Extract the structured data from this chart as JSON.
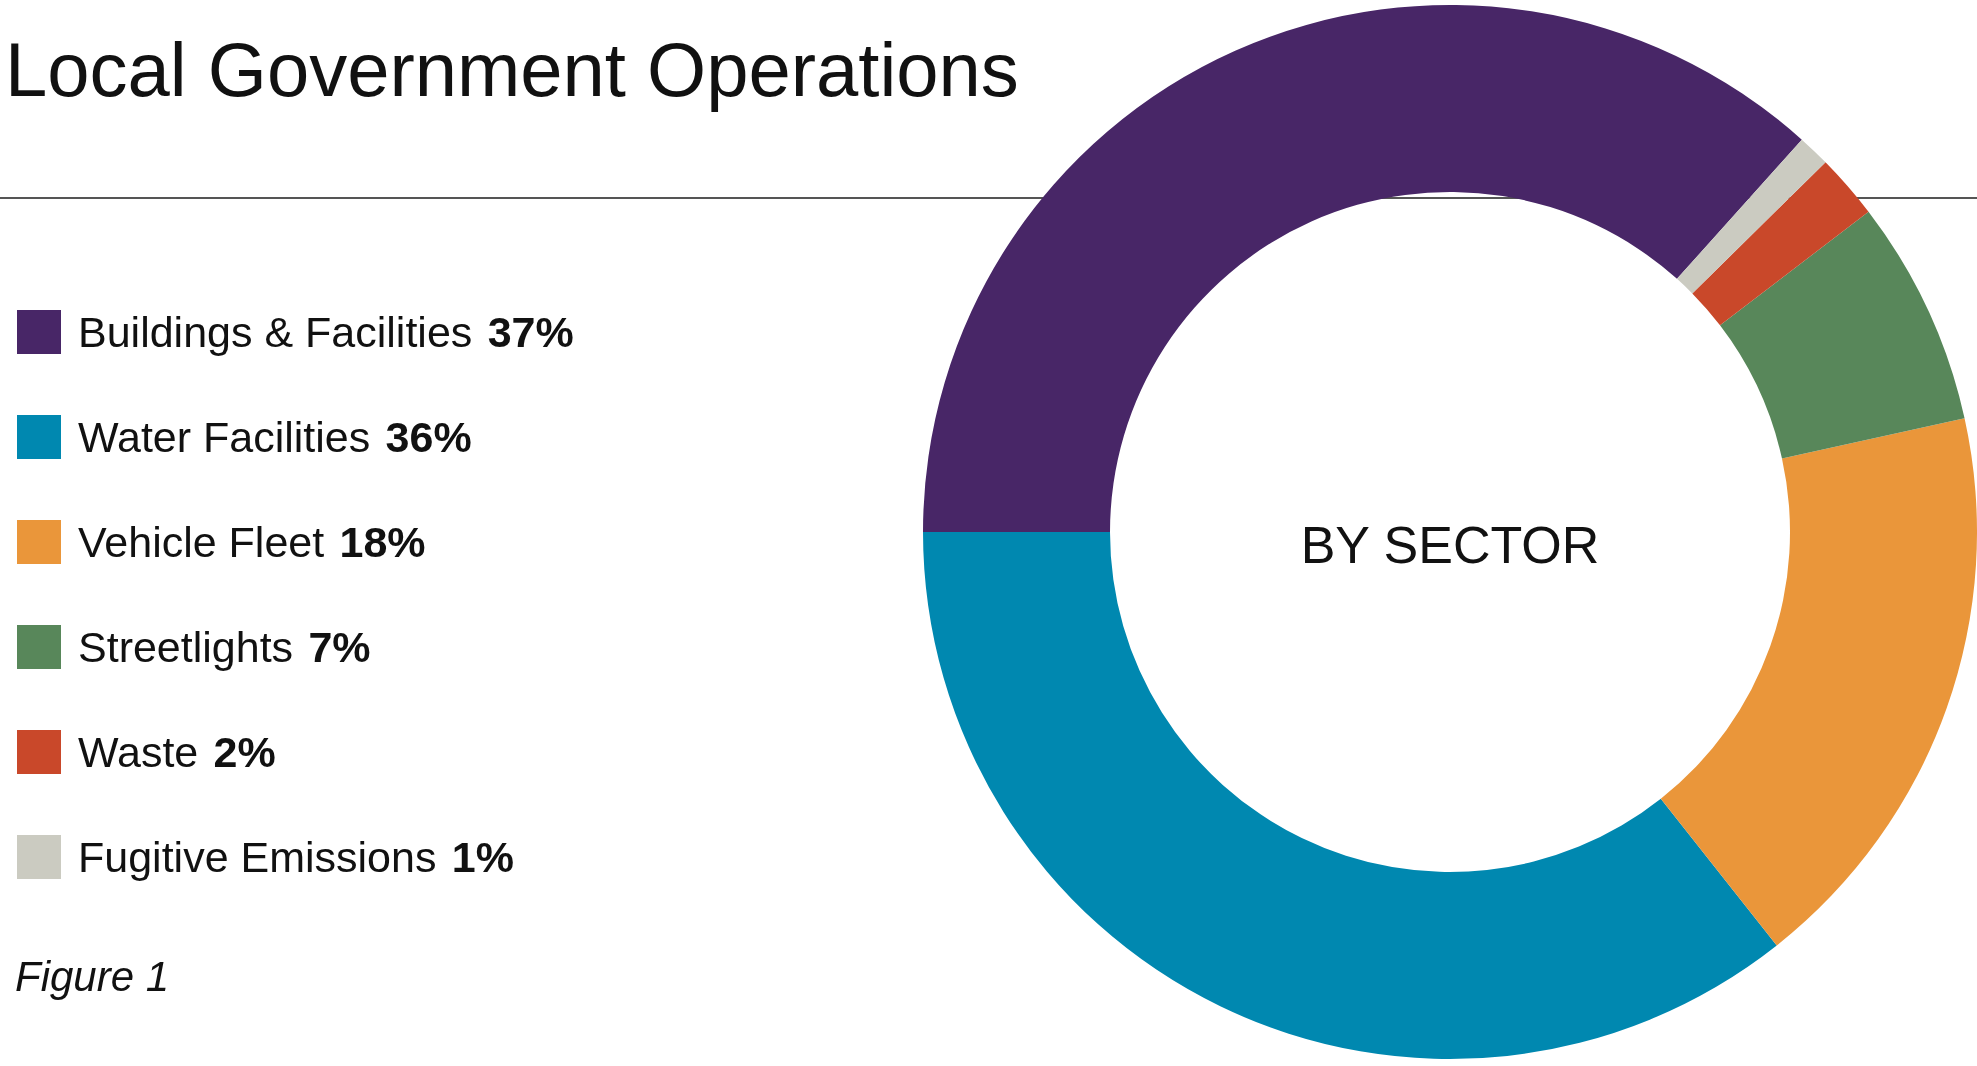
{
  "chart_data": {
    "type": "donut",
    "title": "Local Government Operations",
    "categories": [
      "Buildings & Facilities",
      "Water Facilities",
      "Vehicle Fleet",
      "Streetlights",
      "Waste",
      "Fugitive Emissions"
    ],
    "values": [
      37,
      36,
      18,
      7,
      2,
      1
    ],
    "value_labels": [
      "37%",
      "36%",
      "18%",
      "7%",
      "2%",
      "1%"
    ],
    "colors": [
      "#482667",
      "#0088b0",
      "#ea963a",
      "#58875a",
      "#c9482a",
      "#cbcbc1"
    ],
    "legend": "left",
    "annotations": [
      "BY SECTOR",
      "Figure 1"
    ]
  }
}
